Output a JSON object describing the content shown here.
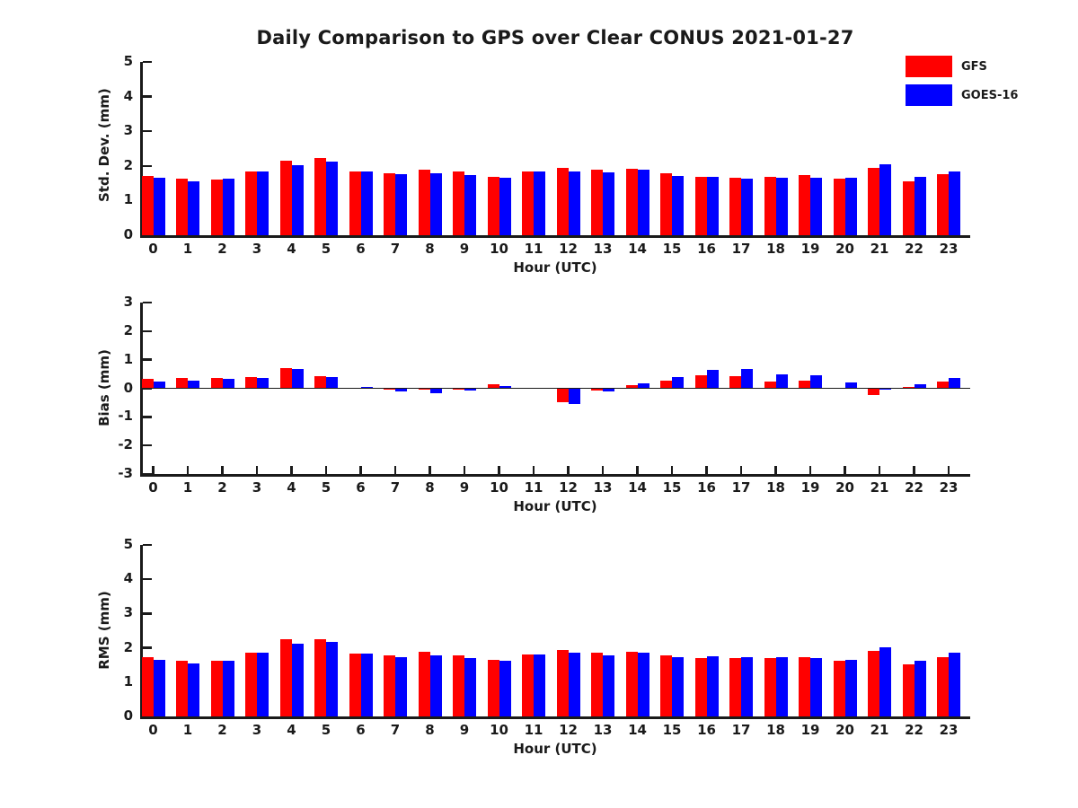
{
  "title": "Daily Comparison to GPS over Clear CONUS 2021-01-27",
  "colors": {
    "gfs_red": "#ff0000",
    "goes_blue": "#0000ff",
    "axis": "#1a1a1a"
  },
  "legend": {
    "position": "top-right-outside",
    "items": [
      {
        "label": "GFS",
        "color": "#ff0000"
      },
      {
        "label": "GOES-16",
        "color": "#0000ff"
      }
    ]
  },
  "chart_data": [
    {
      "type": "bar",
      "panel": "std-dev",
      "ylabel": "Std. Dev. (mm)",
      "xlabel": "Hour (UTC)",
      "ylim": [
        0,
        5
      ],
      "yticks": [
        0,
        1,
        2,
        3,
        4,
        5
      ],
      "grid": false,
      "categories": [
        "0",
        "1",
        "2",
        "3",
        "4",
        "5",
        "6",
        "7",
        "8",
        "9",
        "10",
        "11",
        "12",
        "13",
        "14",
        "15",
        "16",
        "17",
        "18",
        "19",
        "20",
        "21",
        "22",
        "23"
      ],
      "series": [
        {
          "name": "GFS",
          "color": "#ff0000",
          "values": [
            1.72,
            1.62,
            1.6,
            1.83,
            2.15,
            2.22,
            1.83,
            1.79,
            1.9,
            1.85,
            1.68,
            1.83,
            1.95,
            1.9,
            1.92,
            1.78,
            1.68,
            1.65,
            1.68,
            1.73,
            1.62,
            1.94,
            1.55,
            1.77
          ]
        },
        {
          "name": "GOES-16",
          "color": "#0000ff",
          "values": [
            1.65,
            1.55,
            1.63,
            1.83,
            2.03,
            2.12,
            1.85,
            1.75,
            1.8,
            1.73,
            1.66,
            1.83,
            1.83,
            1.81,
            1.88,
            1.72,
            1.68,
            1.63,
            1.66,
            1.65,
            1.66,
            2.04,
            1.68,
            1.84
          ]
        }
      ]
    },
    {
      "type": "bar",
      "panel": "bias",
      "ylabel": "Bias (mm)",
      "xlabel": "Hour (UTC)",
      "ylim": [
        -3,
        3
      ],
      "yticks": [
        3,
        2,
        1,
        0,
        -1,
        -2,
        -3
      ],
      "grid": false,
      "zero_line": true,
      "categories": [
        "0",
        "1",
        "2",
        "3",
        "4",
        "5",
        "6",
        "7",
        "8",
        "9",
        "10",
        "11",
        "12",
        "13",
        "14",
        "15",
        "16",
        "17",
        "18",
        "19",
        "20",
        "21",
        "22",
        "23"
      ],
      "series": [
        {
          "name": "GFS",
          "color": "#ff0000",
          "values": [
            0.32,
            0.35,
            0.35,
            0.38,
            0.72,
            0.42,
            0.02,
            -0.03,
            -0.05,
            -0.04,
            0.15,
            0.03,
            -0.48,
            -0.08,
            0.1,
            0.28,
            0.45,
            0.42,
            0.25,
            0.27,
            0.03,
            -0.25,
            0.05,
            0.25
          ]
        },
        {
          "name": "GOES-16",
          "color": "#0000ff",
          "values": [
            0.25,
            0.28,
            0.32,
            0.35,
            0.68,
            0.38,
            0.06,
            -0.12,
            -0.16,
            -0.08,
            0.07,
            0.02,
            -0.55,
            -0.12,
            0.18,
            0.38,
            0.63,
            0.66,
            0.5,
            0.47,
            0.2,
            -0.03,
            0.15,
            0.35
          ]
        }
      ]
    },
    {
      "type": "bar",
      "panel": "rms",
      "ylabel": "RMS (mm)",
      "xlabel": "Hour (UTC)",
      "ylim": [
        0,
        5
      ],
      "yticks": [
        0,
        1,
        2,
        3,
        4,
        5
      ],
      "grid": false,
      "categories": [
        "0",
        "1",
        "2",
        "3",
        "4",
        "5",
        "6",
        "7",
        "8",
        "9",
        "10",
        "11",
        "12",
        "13",
        "14",
        "15",
        "16",
        "17",
        "18",
        "19",
        "20",
        "21",
        "22",
        "23"
      ],
      "series": [
        {
          "name": "GFS",
          "color": "#ff0000",
          "values": [
            1.73,
            1.62,
            1.62,
            1.85,
            2.25,
            2.25,
            1.82,
            1.78,
            1.88,
            1.79,
            1.66,
            1.81,
            1.95,
            1.87,
            1.89,
            1.79,
            1.7,
            1.71,
            1.69,
            1.74,
            1.61,
            1.91,
            1.53,
            1.74
          ]
        },
        {
          "name": "GOES-16",
          "color": "#0000ff",
          "values": [
            1.66,
            1.55,
            1.63,
            1.85,
            2.12,
            2.16,
            1.84,
            1.73,
            1.79,
            1.7,
            1.63,
            1.81,
            1.87,
            1.79,
            1.86,
            1.74,
            1.76,
            1.74,
            1.72,
            1.7,
            1.65,
            2.02,
            1.63,
            1.85
          ]
        }
      ]
    }
  ]
}
